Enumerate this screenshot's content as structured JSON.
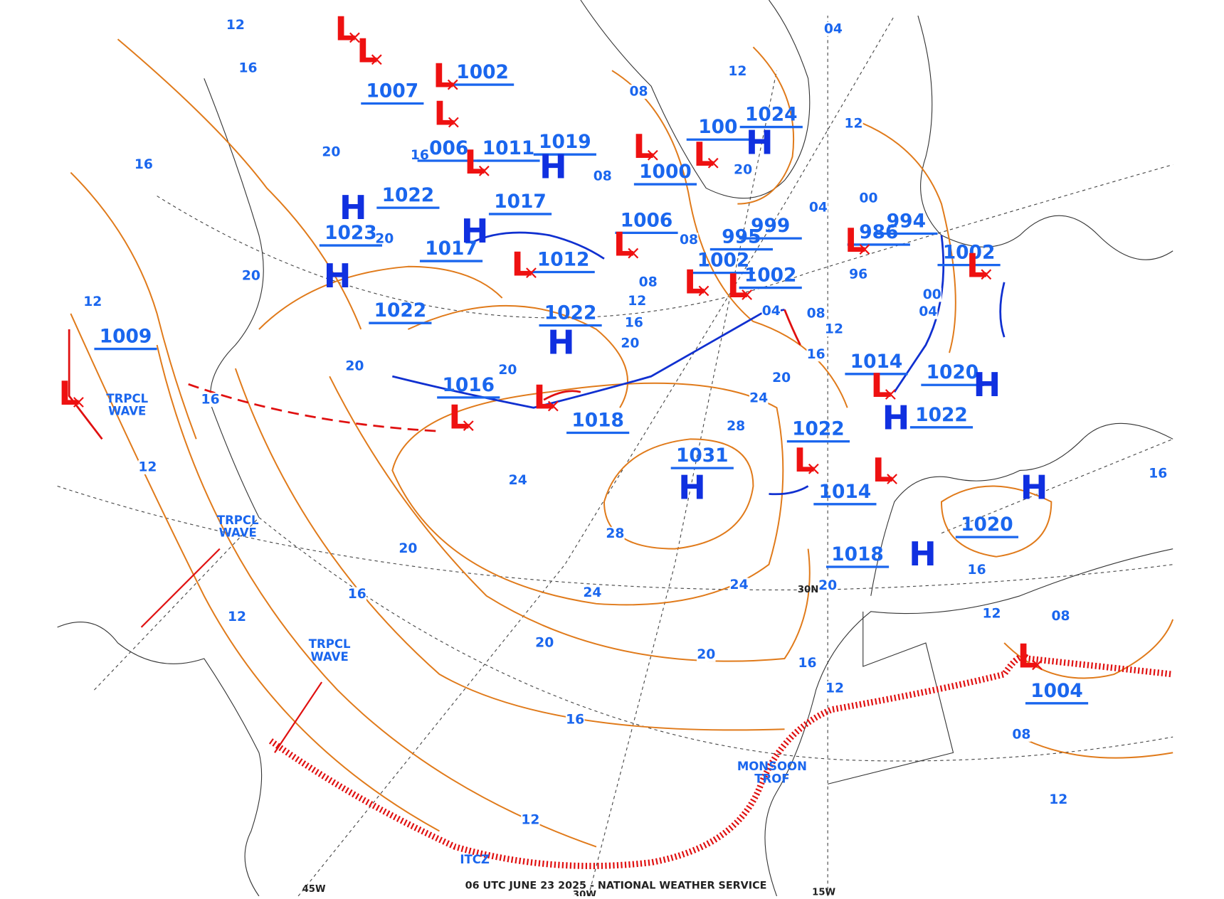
{
  "map": {
    "footer": "06 UTC JUNE 23 2025 - NATIONAL WEATHER SERVICE",
    "longitude_labels": [
      "45W",
      "30W",
      "15W"
    ],
    "latitude_labels": [
      "30N"
    ],
    "feature_labels": [
      "TRPCL WAVE",
      "TRPCL WAVE",
      "TRPCL WAVE",
      "ITCZ",
      "MONSOON TROF"
    ],
    "pressure_labels": [
      "1002",
      "1007",
      "006",
      "1011",
      "1019",
      "1022",
      "1017",
      "1023",
      "1017",
      "1012",
      "1022",
      "1022",
      "1016",
      "1018",
      "1000",
      "1006",
      "1024",
      "100",
      "999",
      "995",
      "1002",
      "1002",
      "1031",
      "1022",
      "1014",
      "1018",
      "1014",
      "1020",
      "1022",
      "1020",
      "1002",
      "994",
      "986",
      "1009",
      "1004"
    ],
    "center_symbols": [
      "H",
      "H",
      "H",
      "H",
      "H",
      "H",
      "H",
      "H",
      "H",
      "H",
      "H",
      "L",
      "L",
      "L",
      "L",
      "L",
      "L",
      "L",
      "L",
      "L",
      "L",
      "L",
      "L",
      "L",
      "L",
      "L",
      "L",
      "L",
      "L",
      "L",
      "L"
    ],
    "isobar_labels": [
      "12",
      "12",
      "12",
      "12",
      "12",
      "12",
      "12",
      "12",
      "12",
      "12",
      "12",
      "12",
      "16",
      "16",
      "16",
      "16",
      "16",
      "16",
      "16",
      "16",
      "16",
      "16",
      "16",
      "20",
      "20",
      "20",
      "20",
      "20",
      "20",
      "20",
      "20",
      "20",
      "20",
      "20",
      "20",
      "24",
      "24",
      "24",
      "24",
      "28",
      "28",
      "08",
      "08",
      "08",
      "08",
      "08",
      "08",
      "08",
      "04",
      "04",
      "04",
      "04",
      "00",
      "00",
      "96"
    ]
  }
}
